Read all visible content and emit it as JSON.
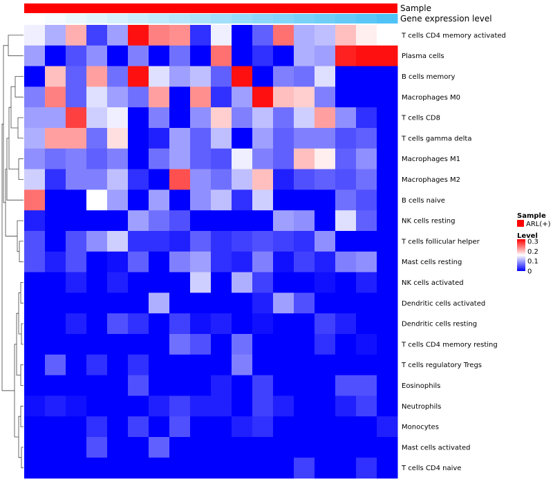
{
  "chart_data": {
    "type": "heatmap",
    "title": "",
    "annotations": {
      "top_label": "Sample",
      "bottom_label": "Gene expression level"
    },
    "legend": {
      "sample_title": "Sample",
      "sample_entry": "ARL(+)",
      "sample_color": "#ff0000",
      "level_title": "Level",
      "level_ticks": [
        0.3,
        0.2,
        0.1,
        0
      ],
      "level_tick_labels": [
        "0.3",
        "0.2",
        "0.1",
        "0"
      ],
      "scale_colors": {
        "low": "#0000ff",
        "mid": "#ffffff",
        "high": "#ff0000"
      },
      "scale_range": [
        0,
        0.32
      ],
      "placement": "right"
    },
    "gene_expression_colors": [
      "#ffffff",
      "#4fc3f7"
    ],
    "column_count": 18,
    "rows": [
      "T cells CD4 memory activated",
      "Plasma cells",
      "B cells memory",
      "Macrophages M0",
      "T cells CD8",
      "T cells gamma delta",
      "Macrophages M1",
      "Macrophages M2",
      "B cells naive",
      "NK cells resting",
      "T cells follicular helper",
      "Mast cells resting",
      "NK cells activated",
      "Dendritic cells activated",
      "Dendritic cells resting",
      "T cells CD4 memory resting",
      "T cells regulatory  Tregs",
      "Eosinophils",
      "Neutrophils",
      "Monocytes",
      "Mast cells activated",
      "T cells CD4 naive"
    ],
    "values": [
      [
        0.15,
        0.11,
        0.21,
        0.04,
        0.1,
        0.31,
        0.24,
        0.23,
        0.03,
        0.15,
        0.0,
        0.06,
        0.25,
        0.11,
        0.12,
        0.2,
        0.17,
        0.16
      ],
      [
        0.1,
        0.0,
        0.05,
        0.09,
        0.0,
        0.08,
        0.0,
        0.07,
        0.0,
        0.25,
        0.0,
        0.03,
        0.0,
        0.11,
        0.1,
        0.3,
        0.31,
        0.31
      ],
      [
        0.0,
        0.2,
        0.06,
        0.22,
        0.07,
        0.31,
        0.14,
        0.1,
        0.12,
        0.06,
        0.31,
        0.0,
        0.08,
        0.07,
        0.14,
        0.0,
        0.0,
        0.0
      ],
      [
        0.08,
        0.24,
        0.06,
        0.14,
        0.1,
        0.07,
        0.22,
        0.0,
        0.23,
        0.03,
        0.1,
        0.31,
        0.2,
        0.19,
        0.08,
        0.0,
        0.0,
        0.0
      ],
      [
        0.1,
        0.1,
        0.28,
        0.13,
        0.15,
        0.0,
        0.08,
        0.0,
        0.09,
        0.19,
        0.08,
        0.12,
        0.07,
        0.13,
        0.22,
        0.09,
        0.03,
        0.0
      ],
      [
        0.11,
        0.22,
        0.22,
        0.07,
        0.18,
        0.0,
        0.02,
        0.1,
        0.06,
        0.12,
        0.0,
        0.1,
        0.06,
        0.08,
        0.08,
        0.05,
        0.06,
        0.0
      ],
      [
        0.09,
        0.07,
        0.08,
        0.06,
        0.08,
        0.0,
        0.07,
        0.1,
        0.06,
        0.05,
        0.15,
        0.08,
        0.06,
        0.2,
        0.17,
        0.06,
        0.09,
        0.0
      ],
      [
        0.13,
        0.03,
        0.08,
        0.08,
        0.12,
        0.03,
        0.0,
        0.27,
        0.09,
        0.07,
        0.12,
        0.2,
        0.02,
        0.05,
        0.06,
        0.05,
        0.07,
        0.0
      ],
      [
        0.25,
        0.0,
        0.0,
        0.16,
        0.1,
        0.0,
        0.1,
        0.0,
        0.09,
        0.12,
        0.03,
        0.13,
        0.0,
        0.0,
        0.0,
        0.07,
        0.05,
        0.0
      ],
      [
        0.02,
        0.0,
        0.0,
        0.0,
        0.0,
        0.1,
        0.07,
        0.05,
        0.0,
        0.0,
        0.0,
        0.0,
        0.1,
        0.09,
        0.0,
        0.14,
        0.06,
        0.0
      ],
      [
        0.05,
        0.0,
        0.05,
        0.09,
        0.13,
        0.03,
        0.03,
        0.02,
        0.06,
        0.03,
        0.04,
        0.05,
        0.04,
        0.03,
        0.09,
        0.0,
        0.0,
        0.0
      ],
      [
        0.05,
        0.02,
        0.05,
        0.0,
        0.01,
        0.06,
        0.0,
        0.08,
        0.1,
        0.03,
        0.02,
        0.08,
        0.01,
        0.04,
        0.02,
        0.08,
        0.09,
        0.0
      ],
      [
        0.0,
        0.0,
        0.02,
        0.0,
        0.02,
        0.0,
        0.0,
        0.0,
        0.13,
        0.0,
        0.11,
        0.04,
        0.0,
        0.0,
        0.01,
        0.0,
        0.02,
        0.0
      ],
      [
        0.0,
        0.0,
        0.0,
        0.0,
        0.0,
        0.0,
        0.11,
        0.0,
        0.0,
        0.0,
        0.0,
        0.02,
        0.1,
        0.05,
        0.0,
        0.0,
        0.0,
        0.0
      ],
      [
        0.0,
        0.0,
        0.02,
        0.0,
        0.05,
        0.03,
        0.0,
        0.04,
        0.01,
        0.02,
        0.0,
        0.01,
        0.0,
        0.0,
        0.04,
        0.02,
        0.0,
        0.0
      ],
      [
        0.0,
        0.0,
        0.0,
        0.0,
        0.0,
        0.0,
        0.0,
        0.07,
        0.05,
        0.0,
        0.07,
        0.0,
        0.0,
        0.0,
        0.03,
        0.0,
        0.01,
        0.0
      ],
      [
        0.0,
        0.06,
        0.0,
        0.03,
        0.0,
        0.03,
        0.0,
        0.0,
        0.0,
        0.0,
        0.08,
        0.0,
        0.0,
        0.0,
        0.0,
        0.0,
        0.0,
        0.0
      ],
      [
        0.0,
        0.0,
        0.0,
        0.0,
        0.0,
        0.05,
        0.0,
        0.0,
        0.0,
        0.02,
        0.0,
        0.04,
        0.0,
        0.0,
        0.0,
        0.05,
        0.05,
        0.0
      ],
      [
        0.01,
        0.02,
        0.01,
        0.0,
        0.0,
        0.0,
        0.02,
        0.04,
        0.02,
        0.02,
        0.0,
        0.04,
        0.02,
        0.0,
        0.0,
        0.02,
        0.04,
        0.0
      ],
      [
        0.0,
        0.0,
        0.0,
        0.03,
        0.0,
        0.04,
        0.0,
        0.05,
        0.0,
        0.0,
        0.02,
        0.03,
        0.0,
        0.0,
        0.0,
        0.0,
        0.0,
        0.02
      ],
      [
        0.0,
        0.0,
        0.0,
        0.05,
        0.0,
        0.0,
        0.06,
        0.0,
        0.0,
        0.0,
        0.0,
        0.0,
        0.0,
        0.0,
        0.0,
        0.0,
        0.0,
        0.0
      ],
      [
        0.0,
        0.0,
        0.0,
        0.0,
        0.0,
        0.0,
        0.0,
        0.0,
        0.0,
        0.0,
        0.0,
        0.0,
        0.0,
        0.04,
        0.0,
        0.0,
        0.03,
        0.0
      ]
    ]
  }
}
